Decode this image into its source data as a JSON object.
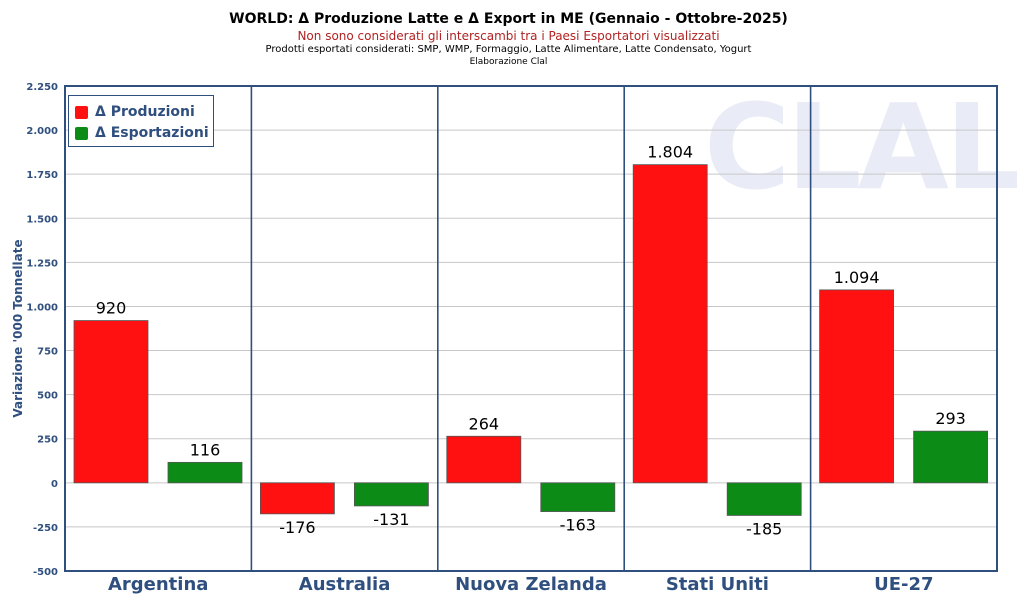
{
  "header": {
    "title": "WORLD: Δ Produzione Latte e Δ Export in ME (Gennaio - Ottobre-2025)",
    "subtitle": "Non sono considerati gli interscambi tra i Paesi Esportatori visualizzati",
    "note_products": "Prodotti esportati considerati: SMP, WMP, Formaggio, Latte Alimentare, Latte Condensato, Yogurt",
    "note_source": "Elaborazione Clal"
  },
  "watermark": "CLAL",
  "colors": {
    "produzioni": "#ff1111",
    "esportazioni": "#0c8c16",
    "frame": "#2f4f7f",
    "grid": "#c8c8c8",
    "watermark": "#e9ecf6"
  },
  "chart_data": {
    "type": "bar",
    "title": "WORLD: Δ Produzione Latte e Δ Export in ME (Gennaio - Ottobre-2025)",
    "ylabel": "Variazione '000 Tonnellate",
    "xlabel": "",
    "categories": [
      "Argentina",
      "Australia",
      "Nuova Zelanda",
      "Stati Uniti",
      "UE-27"
    ],
    "series": [
      {
        "name": "Δ Produzioni",
        "values": [
          920,
          -176,
          264,
          1804,
          1094
        ],
        "labels": [
          "920",
          "-176",
          "264",
          "1.804",
          "1.094"
        ]
      },
      {
        "name": "Δ Esportazioni",
        "values": [
          116,
          -131,
          -163,
          -185,
          293
        ],
        "labels": [
          "116",
          "-131",
          "-163",
          "-185",
          "293"
        ]
      }
    ],
    "ylim": [
      -500,
      2250
    ],
    "yticks": [
      -500,
      -250,
      0,
      250,
      500,
      750,
      1000,
      1250,
      1500,
      1750,
      2000,
      2250
    ],
    "ytick_labels": [
      "-500",
      "-250",
      "0",
      "250",
      "500",
      "750",
      "1.000",
      "1.250",
      "1.500",
      "1.750",
      "2.000",
      "2.250"
    ],
    "grid": true,
    "legend": "top-left"
  }
}
